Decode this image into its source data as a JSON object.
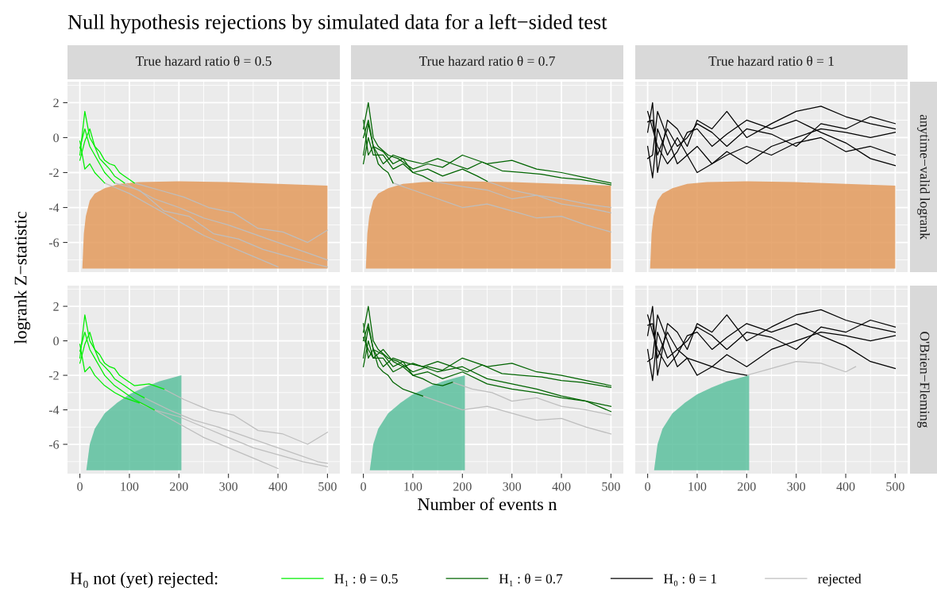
{
  "chart_data": [
    {
      "type": "line",
      "title": "Null hypothesis rejections by simulated data for a left−sided test",
      "subtitle": "True hazard ratio θ = 0.5",
      "ylabel": "logrank Z−statistic",
      "legend": "bottom",
      "legend_title": "H₀ not (yet) rejected:",
      "xlim": [
        -25,
        525
      ],
      "ylim": [
        -7.7,
        3.2
      ],
      "xticks": [
        0,
        100,
        200,
        300,
        400,
        500
      ],
      "yticks": [
        -6,
        -4,
        -2,
        0,
        2
      ],
      "grid": true,
      "tick_labels": "y",
      "series": [
        {
          "type": "area",
          "color": "#e39a5c",
          "x": [
            5,
            8,
            12,
            20,
            30,
            50,
            80,
            120,
            200,
            300,
            400,
            500,
            500
          ],
          "values": [
            -7.5,
            -5.5,
            -4.5,
            -3.6,
            -3.2,
            -2.9,
            -2.65,
            -2.55,
            -2.5,
            -2.55,
            -2.65,
            -2.75,
            -7.5
          ]
        },
        {
          "color": "#bebebe",
          "x": [
            90,
            150,
            200,
            250,
            300,
            350,
            400,
            450,
            500
          ],
          "values": [
            -2.6,
            -3.5,
            -4,
            -4.6,
            -5,
            -5.5,
            -6,
            -6.5,
            -7
          ]
        },
        {
          "color": "#bebebe",
          "x": [
            70,
            120,
            170,
            220,
            270,
            320,
            370,
            420,
            470,
            500
          ],
          "values": [
            -2.6,
            -3,
            -4.2,
            -4.5,
            -5.5,
            -5.8,
            -6.4,
            -6.8,
            -7.2,
            -7.4
          ]
        },
        {
          "color": "#bebebe",
          "x": [
            110,
            160,
            210,
            260,
            310,
            360,
            410,
            460,
            500
          ],
          "values": [
            -2.6,
            -3,
            -3.4,
            -4,
            -4.3,
            -5.2,
            -5.4,
            -6,
            -5.3
          ]
        },
        {
          "color": "#bebebe",
          "x": [
            50,
            100,
            150,
            200,
            250,
            300,
            350,
            400
          ],
          "values": [
            -2.6,
            -3.2,
            -4,
            -4.8,
            -5.6,
            -6.2,
            -6.8,
            -7.4
          ]
        },
        {
          "name": "H₁ : θ = 0.5",
          "color": "#00ee00",
          "x": [
            0,
            10,
            20,
            30,
            40,
            50,
            60,
            70,
            80,
            90
          ],
          "values": [
            -1,
            1.5,
            0,
            -0.5,
            -1.2,
            -1.5,
            -1.8,
            -2.2,
            -2.4,
            -2.6
          ]
        },
        {
          "color": "#00ee00",
          "x": [
            0,
            10,
            20,
            30,
            40,
            50,
            60,
            70
          ],
          "values": [
            -0.6,
            0.5,
            -0.5,
            -1,
            -1.5,
            -2,
            -2.3,
            -2.6
          ]
        },
        {
          "color": "#00ee00",
          "x": [
            0,
            10,
            20,
            30,
            40,
            50,
            60,
            70,
            80,
            90,
            100,
            110
          ],
          "values": [
            -1.3,
            -0.2,
            0.5,
            -0.5,
            -0.8,
            -1.3,
            -1.5,
            -1.6,
            -2,
            -2.2,
            -2.4,
            -2.6
          ]
        },
        {
          "color": "#00ee00",
          "x": [
            0,
            10,
            20,
            30,
            40,
            50
          ],
          "values": [
            -0.2,
            -1.8,
            -1.5,
            -2,
            -2.3,
            -2.6
          ]
        }
      ]
    },
    {
      "type": "line",
      "subtitle": "True hazard ratio θ = 0.7",
      "xlim": [
        -25,
        525
      ],
      "ylim": [
        -7.7,
        3.2
      ],
      "xticks": [
        0,
        100,
        200,
        300,
        400,
        500
      ],
      "yticks": [
        -6,
        -4,
        -2,
        0,
        2
      ],
      "grid": true,
      "tick_labels": false,
      "series": [
        {
          "type": "area",
          "color": "#e39a5c",
          "x": [
            5,
            8,
            12,
            20,
            30,
            50,
            80,
            120,
            200,
            300,
            400,
            500,
            500
          ],
          "values": [
            -7.5,
            -5.5,
            -4.5,
            -3.6,
            -3.2,
            -2.9,
            -2.65,
            -2.55,
            -2.5,
            -2.55,
            -2.65,
            -2.75,
            -7.5
          ]
        },
        {
          "color": "#bebebe",
          "x": [
            250,
            300,
            350,
            400,
            450,
            500
          ],
          "values": [
            -2.5,
            -3,
            -3.3,
            -3.5,
            -3.8,
            -4
          ]
        },
        {
          "color": "#bebebe",
          "x": [
            60,
            100,
            150,
            200,
            250,
            300,
            350,
            400,
            450,
            500
          ],
          "values": [
            -2.6,
            -3,
            -3.5,
            -4,
            -3.8,
            -4.2,
            -4.6,
            -4.5,
            -5,
            -5.4
          ]
        },
        {
          "color": "#bebebe",
          "x": [
            140,
            200,
            250,
            300,
            350,
            400,
            450,
            500
          ],
          "values": [
            -2.5,
            -2.8,
            -3,
            -3.5,
            -3.3,
            -3.8,
            -4,
            -4.3
          ]
        },
        {
          "name": "H₁ : θ = 0.7",
          "color": "#006400",
          "x": [
            0,
            10,
            20,
            30,
            50,
            70,
            100,
            130,
            160,
            200,
            250,
            300,
            350,
            400,
            450,
            500
          ],
          "values": [
            0.5,
            2,
            0,
            -0.5,
            -1,
            -1.2,
            -1.8,
            -1.5,
            -1.7,
            -1,
            -1.5,
            -1.3,
            -1.8,
            -2,
            -2.3,
            -2.6
          ]
        },
        {
          "color": "#006400",
          "x": [
            0,
            10,
            20,
            40,
            60,
            80,
            100,
            130,
            160,
            200,
            230,
            250
          ],
          "values": [
            -1,
            0.8,
            -0.5,
            -0.8,
            -1.5,
            -1.2,
            -2,
            -1.8,
            -2.2,
            -1.8,
            -2.2,
            -2.5
          ]
        },
        {
          "color": "#006400",
          "x": [
            0,
            10,
            20,
            30,
            40,
            50,
            60
          ],
          "values": [
            1,
            -1,
            -0.5,
            -1.5,
            -1.8,
            -2,
            -2.6
          ]
        },
        {
          "color": "#006400",
          "x": [
            0,
            10,
            20,
            40,
            60,
            80,
            100,
            120,
            140
          ],
          "values": [
            -1.5,
            0,
            -1,
            -1,
            -1.8,
            -1.5,
            -2,
            -2.2,
            -2.5
          ]
        },
        {
          "color": "#006400",
          "x": [
            0,
            10,
            20,
            40,
            60,
            90,
            120,
            150,
            180,
            210,
            240,
            280,
            320,
            360,
            400,
            440,
            480,
            500
          ],
          "values": [
            0,
            1,
            -0.5,
            -1.5,
            -1,
            -1.3,
            -1.5,
            -1.2,
            -1.5,
            -1.8,
            -1.4,
            -1.9,
            -2,
            -2.1,
            -2.3,
            -2.4,
            -2.6,
            -2.7
          ]
        }
      ]
    },
    {
      "type": "line",
      "subtitle": "True hazard ratio θ = 1",
      "y2label": "anytime−valid logrank",
      "xlim": [
        -25,
        525
      ],
      "ylim": [
        -7.7,
        3.2
      ],
      "xticks": [
        0,
        100,
        200,
        300,
        400,
        500
      ],
      "yticks": [
        -6,
        -4,
        -2,
        0,
        2
      ],
      "grid": true,
      "tick_labels": false,
      "series": [
        {
          "type": "area",
          "color": "#e39a5c",
          "x": [
            5,
            8,
            12,
            20,
            30,
            50,
            80,
            120,
            200,
            300,
            400,
            500,
            500
          ],
          "values": [
            -7.5,
            -5.5,
            -4.5,
            -3.6,
            -3.2,
            -2.9,
            -2.65,
            -2.55,
            -2.5,
            -2.55,
            -2.65,
            -2.75,
            -7.5
          ]
        },
        {
          "name": "H₀ : θ = 1",
          "color": "#000000",
          "x": [
            0,
            10,
            20,
            40,
            60,
            80,
            100,
            130,
            160,
            200,
            250,
            300,
            350,
            400,
            450,
            500
          ],
          "values": [
            0.3,
            2,
            -2,
            1,
            0.5,
            -0.5,
            1,
            0.5,
            1.5,
            0,
            0.8,
            1.5,
            1.8,
            1.2,
            0.8,
            0.5
          ]
        },
        {
          "color": "#000000",
          "x": [
            0,
            10,
            20,
            40,
            60,
            80,
            100,
            130,
            160,
            200,
            250,
            300,
            350,
            400,
            450,
            500
          ],
          "values": [
            -0.5,
            -2.3,
            0.5,
            -1,
            0,
            -1,
            -0.5,
            -1.5,
            -1,
            -0.5,
            -1,
            -0.3,
            0,
            -0.8,
            -0.5,
            -1
          ]
        },
        {
          "color": "#000000",
          "x": [
            0,
            10,
            20,
            40,
            60,
            80,
            100,
            130,
            160,
            200,
            250,
            300,
            350,
            400,
            450,
            500
          ],
          "values": [
            0.9,
            1,
            -1,
            0.5,
            -0.5,
            0,
            0.8,
            0.3,
            -0.5,
            0.5,
            0.2,
            -0.5,
            0.8,
            0.5,
            1.2,
            0.8
          ]
        },
        {
          "color": "#000000",
          "x": [
            0,
            10,
            20,
            40,
            60,
            80,
            100,
            130,
            160,
            200,
            250,
            300,
            350,
            400,
            450,
            500
          ],
          "values": [
            -1.2,
            -1,
            1.5,
            0,
            -1.5,
            -1,
            -2,
            -1.5,
            -0.8,
            -1.5,
            -0.5,
            0,
            0.5,
            0.3,
            0,
            0.3
          ]
        },
        {
          "color": "#000000",
          "x": [
            0,
            10,
            20,
            40,
            60,
            80,
            100,
            130,
            160,
            200,
            250,
            300,
            350,
            400,
            450,
            500
          ],
          "values": [
            1.5,
            0.5,
            -0.5,
            -1.5,
            -0.8,
            0.3,
            0.5,
            -0.5,
            0.2,
            1,
            0.5,
            1,
            0.3,
            -0.3,
            -1.2,
            -1.6
          ]
        }
      ]
    },
    {
      "type": "line",
      "xlim": [
        -25,
        525
      ],
      "ylim": [
        -7.7,
        3.2
      ],
      "xticks": [
        0,
        100,
        200,
        300,
        400,
        500
      ],
      "yticks": [
        -6,
        -4,
        -2,
        0,
        2
      ],
      "grid": true,
      "series": [
        {
          "type": "area",
          "color": "#5cbf9e",
          "x": [
            13,
            20,
            30,
            50,
            75,
            100,
            130,
            160,
            205,
            205
          ],
          "values": [
            -7.5,
            -6,
            -5.1,
            -4.2,
            -3.6,
            -3.1,
            -2.7,
            -2.35,
            -2,
            -7.5
          ]
        },
        {
          "name": "rejected",
          "color": "#bebebe",
          "x": [
            130,
            180,
            230,
            280,
            330,
            380,
            430,
            480,
            500
          ],
          "values": [
            -3.3,
            -4,
            -4.6,
            -5,
            -5.5,
            -6,
            -6.5,
            -7,
            -7.1
          ]
        },
        {
          "color": "#bebebe",
          "x": [
            150,
            200,
            250,
            300,
            350,
            400,
            450,
            500
          ],
          "values": [
            -4,
            -4.4,
            -5,
            -5.6,
            -6.2,
            -6.6,
            -7,
            -7.3
          ]
        },
        {
          "color": "#bebebe",
          "x": [
            170,
            210,
            260,
            310,
            360,
            410,
            460,
            500
          ],
          "values": [
            -2.8,
            -3.4,
            -4,
            -4.3,
            -5.2,
            -5.4,
            -6,
            -5.3
          ]
        },
        {
          "color": "#bebebe",
          "x": [
            120,
            150,
            200,
            250,
            300,
            350,
            400
          ],
          "values": [
            -3.6,
            -4,
            -4.8,
            -5.6,
            -6.2,
            -6.8,
            -7.4
          ]
        },
        {
          "color": "#00ee00",
          "x": [
            0,
            10,
            20,
            30,
            40,
            50,
            60,
            70,
            80,
            90,
            110,
            130
          ],
          "values": [
            -1,
            1.5,
            0,
            -0.5,
            -1.2,
            -1.5,
            -1.8,
            -2.2,
            -2.4,
            -2.6,
            -3,
            -3.3
          ]
        },
        {
          "color": "#00ee00",
          "x": [
            0,
            10,
            20,
            30,
            40,
            50,
            60,
            70,
            90,
            110,
            130,
            150
          ],
          "values": [
            -0.6,
            0.5,
            -0.5,
            -1,
            -1.5,
            -2,
            -2.3,
            -2.6,
            -3,
            -3.4,
            -3.7,
            -4
          ]
        },
        {
          "color": "#00ee00",
          "x": [
            0,
            10,
            20,
            30,
            40,
            50,
            60,
            70,
            80,
            90,
            100,
            110,
            140,
            170
          ],
          "values": [
            -1.3,
            -0.2,
            0.5,
            -0.5,
            -0.8,
            -1.3,
            -1.5,
            -1.6,
            -2,
            -2.2,
            -2.4,
            -2.6,
            -2.5,
            -2.8
          ]
        },
        {
          "color": "#00ee00",
          "x": [
            0,
            10,
            20,
            30,
            40,
            50,
            70,
            90,
            120
          ],
          "values": [
            -0.2,
            -1.8,
            -1.5,
            -2,
            -2.3,
            -2.6,
            -3,
            -3.3,
            -3.6
          ]
        }
      ]
    },
    {
      "type": "line",
      "xlabel": "Number of events n",
      "xlim": [
        -25,
        525
      ],
      "ylim": [
        -7.7,
        3.2
      ],
      "xticks": [
        0,
        100,
        200,
        300,
        400,
        500
      ],
      "yticks": [
        -6,
        -4,
        -2,
        0,
        2
      ],
      "grid": true,
      "tick_labels": "x",
      "series": [
        {
          "type": "area",
          "color": "#5cbf9e",
          "x": [
            13,
            20,
            30,
            50,
            75,
            100,
            130,
            160,
            205,
            205
          ],
          "values": [
            -7.5,
            -6,
            -5.1,
            -4.2,
            -3.6,
            -3.1,
            -2.7,
            -2.35,
            -2,
            -7.5
          ]
        },
        {
          "color": "#bebebe",
          "x": [
            120,
            160,
            200,
            250,
            300,
            350,
            400,
            450,
            500
          ],
          "values": [
            -3.2,
            -3.6,
            -4,
            -3.8,
            -4.2,
            -4.6,
            -4.5,
            -5,
            -5.4
          ]
        },
        {
          "color": "#bebebe",
          "x": [
            180,
            220,
            260,
            300,
            350,
            400,
            450,
            500
          ],
          "values": [
            -2.4,
            -2.8,
            -3,
            -3.5,
            -3.3,
            -3.8,
            -4,
            -4.3
          ]
        },
        {
          "color": "#006400",
          "x": [
            0,
            10,
            20,
            30,
            50,
            70,
            100,
            130,
            160,
            200,
            250,
            300,
            350,
            400,
            450,
            500
          ],
          "values": [
            0.5,
            2,
            0,
            -0.5,
            -1,
            -1.2,
            -1.8,
            -1.5,
            -1.7,
            -1,
            -1.5,
            -1.3,
            -1.8,
            -2,
            -2.3,
            -2.6
          ]
        },
        {
          "color": "#006400",
          "x": [
            0,
            10,
            20,
            40,
            60,
            80,
            100,
            130,
            160,
            200,
            250,
            300,
            350,
            400,
            450,
            500
          ],
          "values": [
            -1,
            0.8,
            -0.5,
            -0.8,
            -1.5,
            -1.2,
            -2,
            -1.8,
            -2.2,
            -1.8,
            -2.5,
            -2.8,
            -3,
            -3.3,
            -3.5,
            -3.8
          ]
        },
        {
          "color": "#006400",
          "x": [
            0,
            10,
            20,
            30,
            40,
            50,
            60,
            80,
            100,
            120
          ],
          "values": [
            1,
            -1,
            -0.5,
            -1.5,
            -1.8,
            -2,
            -2.4,
            -2.8,
            -3,
            -3.2
          ]
        },
        {
          "color": "#006400",
          "x": [
            0,
            10,
            20,
            40,
            60,
            80,
            100,
            120,
            140,
            160,
            180
          ],
          "values": [
            -1.5,
            0,
            -1,
            -1,
            -1.8,
            -1.5,
            -2,
            -2.2,
            -2.5,
            -2.6,
            -2.4
          ]
        },
        {
          "color": "#006400",
          "x": [
            0,
            10,
            20,
            40,
            60,
            90,
            120,
            150,
            180,
            210,
            240,
            280,
            320,
            360,
            400,
            440,
            480,
            500
          ],
          "values": [
            0,
            1,
            -0.5,
            -1.5,
            -1,
            -1.3,
            -1.5,
            -1.2,
            -1.5,
            -1.8,
            -1.4,
            -1.9,
            -2,
            -2.1,
            -2.3,
            -2.4,
            -2.6,
            -2.7
          ]
        },
        {
          "color": "#006400",
          "x": [
            0,
            10,
            20,
            40,
            60,
            80,
            100,
            150,
            200,
            250,
            300,
            350,
            400,
            450,
            500
          ],
          "values": [
            0.2,
            -0.5,
            -1,
            -0.5,
            -1.2,
            -1.5,
            -1.3,
            -1.8,
            -1.5,
            -2.2,
            -2.5,
            -2.8,
            -3.2,
            -3.5,
            -4.1
          ]
        }
      ]
    },
    {
      "type": "line",
      "y2label": "O'Brien−Fleming",
      "xlim": [
        -25,
        525
      ],
      "ylim": [
        -7.7,
        3.2
      ],
      "xticks": [
        0,
        100,
        200,
        300,
        400,
        500
      ],
      "yticks": [
        -6,
        -4,
        -2,
        0,
        2
      ],
      "grid": true,
      "tick_labels": "x",
      "series": [
        {
          "type": "area",
          "color": "#5cbf9e",
          "x": [
            13,
            20,
            30,
            50,
            75,
            100,
            130,
            160,
            205,
            205
          ],
          "values": [
            -7.5,
            -6,
            -5.1,
            -4.2,
            -3.6,
            -3.1,
            -2.7,
            -2.35,
            -2,
            -7.5
          ]
        },
        {
          "color": "#bebebe",
          "x": [
            200,
            250,
            300,
            350,
            400,
            420
          ],
          "values": [
            -2,
            -1.6,
            -1.2,
            -1.3,
            -1.8,
            -1.5
          ]
        },
        {
          "color": "#000000",
          "x": [
            0,
            10,
            20,
            40,
            60,
            80,
            100,
            130,
            160,
            200,
            250,
            300,
            350,
            400,
            450,
            500
          ],
          "values": [
            0.3,
            2,
            -2,
            1,
            0.5,
            -0.5,
            1,
            0.5,
            1.5,
            0,
            0.8,
            1.5,
            1.8,
            1.2,
            0.8,
            0.5
          ]
        },
        {
          "color": "#000000",
          "x": [
            0,
            10,
            20,
            40,
            60,
            80,
            100,
            130,
            160,
            200
          ],
          "values": [
            -0.5,
            -2.3,
            0.5,
            -1,
            -0.5,
            -1,
            -1.2,
            -1.5,
            -1.8,
            -2
          ]
        },
        {
          "color": "#000000",
          "x": [
            0,
            10,
            20,
            40,
            60,
            80,
            100,
            130,
            160,
            200,
            250,
            300,
            350,
            400,
            450,
            500
          ],
          "values": [
            0.9,
            1,
            -1,
            0.5,
            -0.5,
            0,
            0.8,
            0.3,
            -0.5,
            0.5,
            0.2,
            -0.5,
            0.8,
            0.5,
            1.2,
            0.8
          ]
        },
        {
          "color": "#000000",
          "x": [
            0,
            10,
            20,
            40,
            60,
            80,
            100,
            130,
            160,
            200,
            250,
            300,
            350,
            400,
            450,
            500
          ],
          "values": [
            -1.2,
            -1,
            1.5,
            0,
            -1.5,
            -1,
            -2,
            -1.5,
            -0.8,
            -1.5,
            -0.5,
            0,
            0.5,
            0.3,
            0,
            0.3
          ]
        },
        {
          "color": "#000000",
          "x": [
            0,
            10,
            20,
            40,
            60,
            80,
            100,
            130,
            160,
            200,
            250,
            300,
            350,
            400,
            450,
            500
          ],
          "values": [
            1.5,
            0.5,
            -0.5,
            -1.5,
            -0.8,
            0.3,
            0.5,
            -0.5,
            0.2,
            1,
            0.5,
            1,
            0.3,
            -0.3,
            -1.2,
            -1.6
          ]
        }
      ]
    }
  ]
}
